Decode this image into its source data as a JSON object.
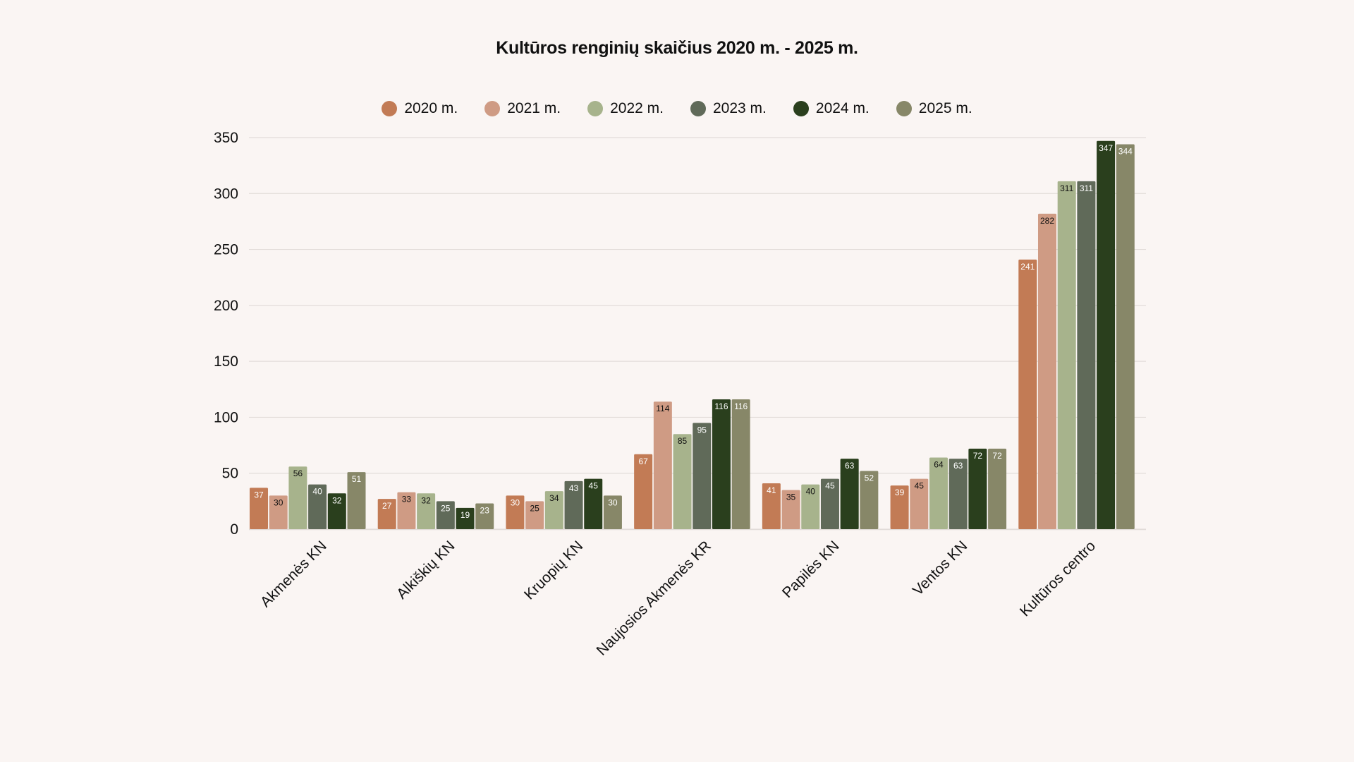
{
  "chart_data": {
    "type": "bar",
    "title": "Kultūros renginių skaičius 2020 m. - 2025 m.",
    "xlabel": "",
    "ylabel": "",
    "ylim": [
      0,
      350
    ],
    "yticks": [
      0,
      50,
      100,
      150,
      200,
      250,
      300,
      350
    ],
    "grid": true,
    "legend_position": "top-center",
    "categories": [
      "Akmenės KN",
      "Alkiškių KN",
      "Kruopių KN",
      "Naujosios Akmenės KR",
      "Papilės KN",
      "Ventos KN",
      "Kultūros centro"
    ],
    "series": [
      {
        "name": "2020 m.",
        "color": "#c27b55",
        "label_color": "#ffffff",
        "values": [
          37,
          27,
          30,
          67,
          41,
          39,
          241
        ]
      },
      {
        "name": "2021 m.",
        "color": "#cf9b84",
        "label_color": "#111111",
        "values": [
          30,
          33,
          25,
          114,
          35,
          45,
          282
        ]
      },
      {
        "name": "2022 m.",
        "color": "#a7b38c",
        "label_color": "#111111",
        "values": [
          56,
          32,
          34,
          85,
          40,
          64,
          311
        ]
      },
      {
        "name": "2023 m.",
        "color": "#606a59",
        "label_color": "#ffffff",
        "values": [
          40,
          25,
          43,
          95,
          45,
          63,
          311
        ]
      },
      {
        "name": "2024 m.",
        "color": "#2a3f1d",
        "label_color": "#ffffff",
        "values": [
          32,
          19,
          45,
          116,
          63,
          72,
          347
        ]
      },
      {
        "name": "2025 m.",
        "color": "#878768",
        "label_color": "#ffffff",
        "values": [
          51,
          23,
          30,
          116,
          52,
          72,
          344
        ]
      }
    ]
  }
}
